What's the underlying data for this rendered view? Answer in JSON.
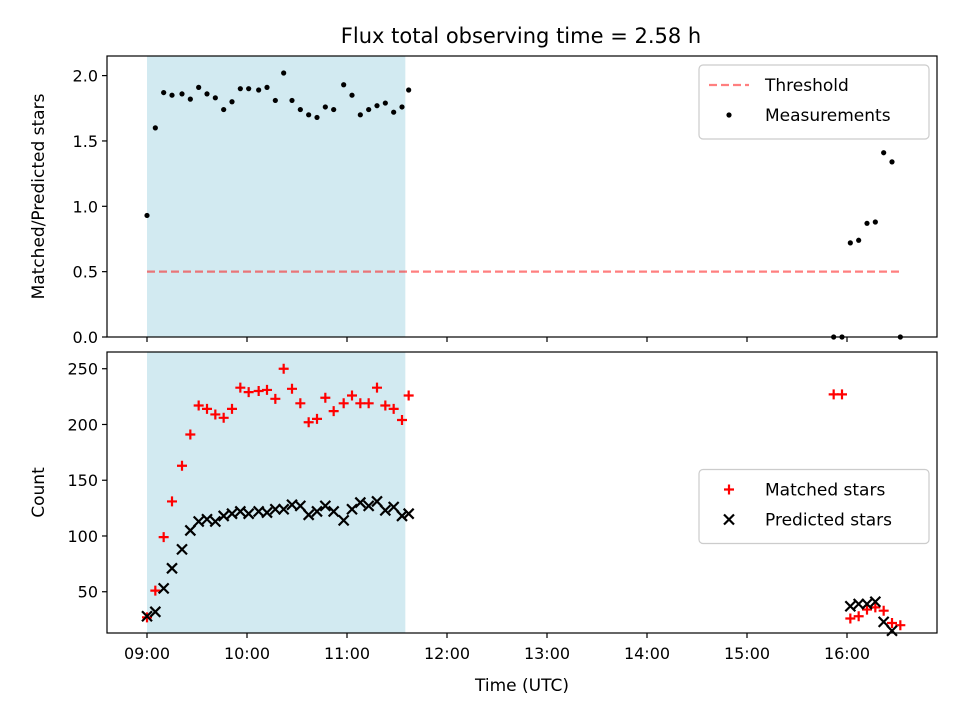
{
  "figure": {
    "title": "Flux total observing time = 2.58 h"
  },
  "colors": {
    "background": "#ffffff",
    "span": "#add8e6",
    "threshold": "#ff0000",
    "measurement": "#000000",
    "matched": "#ff0000",
    "predicted": "#000000"
  },
  "chart_data": [
    {
      "type": "scatter",
      "panel": "top",
      "title": "Flux total observing time = 2.58 h",
      "xlabel": "",
      "ylabel": "Matched/Predicted stars",
      "xlim": [
        "08:36",
        "16:54"
      ],
      "ylim": [
        0,
        2.15
      ],
      "yticks": [
        0.0,
        0.5,
        1.0,
        1.5,
        2.0
      ],
      "ytick_labels": [
        "0.0",
        "0.5",
        "1.0",
        "1.5",
        "2.0"
      ],
      "grid": false,
      "legend_placement": "top-right",
      "observing_span": [
        "09:00",
        "11:35"
      ],
      "threshold": {
        "name": "Threshold",
        "value": 0.5,
        "x": [
          "09:00",
          "16:32"
        ],
        "style": "dashed",
        "alpha": 0.5
      },
      "series": [
        {
          "name": "Measurements",
          "marker": "dot",
          "points": [
            [
              "09:00",
              0.93
            ],
            [
              "09:05",
              1.6
            ],
            [
              "09:10",
              1.87
            ],
            [
              "09:15",
              1.85
            ],
            [
              "09:21",
              1.86
            ],
            [
              "09:26",
              1.82
            ],
            [
              "09:31",
              1.91
            ],
            [
              "09:36",
              1.86
            ],
            [
              "09:41",
              1.83
            ],
            [
              "09:46",
              1.74
            ],
            [
              "09:51",
              1.8
            ],
            [
              "09:56",
              1.9
            ],
            [
              "10:01",
              1.9
            ],
            [
              "10:07",
              1.89
            ],
            [
              "10:12",
              1.91
            ],
            [
              "10:17",
              1.81
            ],
            [
              "10:22",
              2.02
            ],
            [
              "10:27",
              1.81
            ],
            [
              "10:32",
              1.74
            ],
            [
              "10:37",
              1.7
            ],
            [
              "10:42",
              1.68
            ],
            [
              "10:47",
              1.76
            ],
            [
              "10:52",
              1.74
            ],
            [
              "10:58",
              1.93
            ],
            [
              "11:03",
              1.85
            ],
            [
              "11:08",
              1.7
            ],
            [
              "11:13",
              1.74
            ],
            [
              "11:18",
              1.77
            ],
            [
              "11:23",
              1.79
            ],
            [
              "11:28",
              1.72
            ],
            [
              "11:33",
              1.76
            ],
            [
              "11:37",
              1.89
            ],
            [
              "15:52",
              0.0
            ],
            [
              "15:57",
              0.0
            ],
            [
              "16:02",
              0.72
            ],
            [
              "16:07",
              0.74
            ],
            [
              "16:12",
              0.87
            ],
            [
              "16:17",
              0.88
            ],
            [
              "16:22",
              1.41
            ],
            [
              "16:27",
              1.34
            ],
            [
              "16:32",
              0.0
            ]
          ]
        }
      ]
    },
    {
      "type": "scatter",
      "panel": "bottom",
      "xlabel": "Time (UTC)",
      "ylabel": "Count",
      "xlim": [
        "08:36",
        "16:54"
      ],
      "xticks": [
        "09:00",
        "10:00",
        "11:00",
        "12:00",
        "13:00",
        "14:00",
        "15:00",
        "16:00"
      ],
      "ylim": [
        13,
        265
      ],
      "yticks": [
        50,
        100,
        150,
        200,
        250
      ],
      "grid": false,
      "legend_placement": "center-right",
      "observing_span": [
        "09:00",
        "11:35"
      ],
      "series": [
        {
          "name": "Matched stars",
          "marker": "plus",
          "points": [
            [
              "09:00",
              27
            ],
            [
              "09:05",
              51
            ],
            [
              "09:10",
              99
            ],
            [
              "09:15",
              131
            ],
            [
              "09:21",
              163
            ],
            [
              "09:26",
              191
            ],
            [
              "09:31",
              217
            ],
            [
              "09:36",
              214
            ],
            [
              "09:41",
              209
            ],
            [
              "09:46",
              206
            ],
            [
              "09:51",
              214
            ],
            [
              "09:56",
              233
            ],
            [
              "10:01",
              229
            ],
            [
              "10:07",
              230
            ],
            [
              "10:12",
              231
            ],
            [
              "10:17",
              223
            ],
            [
              "10:22",
              250
            ],
            [
              "10:27",
              232
            ],
            [
              "10:32",
              219
            ],
            [
              "10:37",
              202
            ],
            [
              "10:42",
              205
            ],
            [
              "10:47",
              224
            ],
            [
              "10:52",
              212
            ],
            [
              "10:58",
              219
            ],
            [
              "11:03",
              226
            ],
            [
              "11:08",
              219
            ],
            [
              "11:13",
              219
            ],
            [
              "11:18",
              233
            ],
            [
              "11:23",
              217
            ],
            [
              "11:28",
              214
            ],
            [
              "11:33",
              204
            ],
            [
              "11:37",
              226
            ],
            [
              "15:52",
              227
            ],
            [
              "15:57",
              227
            ],
            [
              "16:02",
              26
            ],
            [
              "16:07",
              28
            ],
            [
              "16:12",
              34
            ],
            [
              "16:17",
              36
            ],
            [
              "16:22",
              33
            ],
            [
              "16:27",
              22
            ],
            [
              "16:32",
              20
            ]
          ]
        },
        {
          "name": "Predicted stars",
          "marker": "x",
          "points": [
            [
              "09:00",
              28
            ],
            [
              "09:05",
              32
            ],
            [
              "09:10",
              53
            ],
            [
              "09:15",
              71
            ],
            [
              "09:21",
              88
            ],
            [
              "09:26",
              105
            ],
            [
              "09:31",
              113
            ],
            [
              "09:36",
              115
            ],
            [
              "09:41",
              113
            ],
            [
              "09:46",
              118
            ],
            [
              "09:51",
              120
            ],
            [
              "09:56",
              122
            ],
            [
              "10:01",
              120
            ],
            [
              "10:07",
              122
            ],
            [
              "10:12",
              121
            ],
            [
              "10:17",
              124
            ],
            [
              "10:22",
              124
            ],
            [
              "10:27",
              128
            ],
            [
              "10:32",
              127
            ],
            [
              "10:37",
              119
            ],
            [
              "10:42",
              122
            ],
            [
              "10:47",
              127
            ],
            [
              "10:52",
              122
            ],
            [
              "10:58",
              114
            ],
            [
              "11:03",
              124
            ],
            [
              "11:08",
              130
            ],
            [
              "11:13",
              127
            ],
            [
              "11:18",
              131
            ],
            [
              "11:23",
              123
            ],
            [
              "11:28",
              126
            ],
            [
              "11:33",
              118
            ],
            [
              "11:37",
              120
            ],
            [
              "16:02",
              37
            ],
            [
              "16:07",
              39
            ],
            [
              "16:12",
              39
            ],
            [
              "16:17",
              41
            ],
            [
              "16:22",
              23
            ],
            [
              "16:27",
              15
            ]
          ]
        }
      ]
    }
  ]
}
